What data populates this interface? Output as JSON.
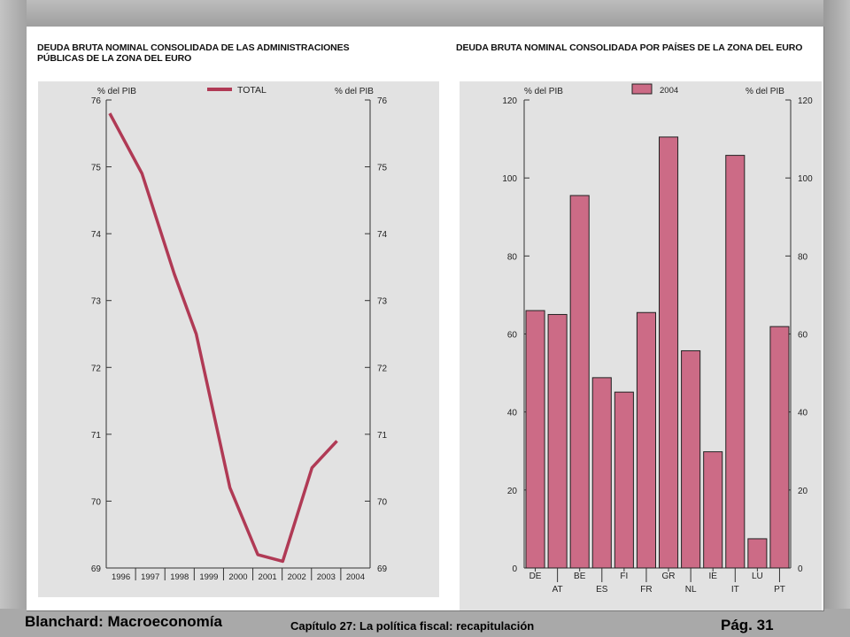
{
  "slide": {
    "left_panel_title": [
      "DEUDA BRUTA NOMINAL CONSOLIDADA DE LAS ADMINISTRACIONES",
      "PÚBLICAS DE LA ZONA  DEL EURO"
    ],
    "right_panel_title": "DEUDA BRUTA NOMINAL CONSOLIDADA POR PAÍSES DE LA ZONA DEL EURO",
    "footer_left": "Blanchard: Macroeconomía",
    "footer_center": "Capítulo 27: La política fiscal: recapitulación",
    "footer_right": "Pág.  31"
  },
  "chart_data": [
    {
      "type": "line",
      "title": "DEUDA BRUTA NOMINAL CONSOLIDADA DE LAS ADMINISTRACIONES PÚBLICAS DE LA ZONA  DEL EURO",
      "ylabel_left": "% del PIB",
      "ylabel_right": "% del PIB",
      "ylim": [
        69,
        76
      ],
      "yticks": [
        69,
        70,
        71,
        72,
        73,
        74,
        75,
        76
      ],
      "categories": [
        "1996",
        "1997",
        "1998",
        "1999",
        "2000",
        "2001",
        "2002",
        "2003",
        "2004"
      ],
      "series": [
        {
          "name": "TOTAL",
          "color": "#b03a55",
          "x": [
            1995.8,
            1996.9,
            1998.0,
            1998.75,
            1999.9,
            2000.85,
            2001.7,
            2002.7,
            2003.55
          ],
          "values": [
            75.8,
            74.9,
            73.4,
            72.5,
            70.2,
            69.2,
            69.1,
            70.5,
            70.9
          ]
        }
      ],
      "grid": false,
      "legend": "top-center"
    },
    {
      "type": "bar",
      "title": "DEUDA BRUTA NOMINAL CONSOLIDADA POR PAÍSES DE LA ZONA DEL EURO",
      "ylabel_left": "% del PIB",
      "ylabel_right": "% del PIB",
      "ylim": [
        0,
        120
      ],
      "yticks": [
        0,
        20,
        40,
        60,
        80,
        100,
        120
      ],
      "categories": [
        "DE",
        "AT",
        "BE",
        "ES",
        "FI",
        "FR",
        "GR",
        "NL",
        "IE",
        "IT",
        "LU",
        "PT"
      ],
      "series": [
        {
          "name": "2004",
          "color": "#cc6b86",
          "values": [
            66,
            65,
            95.5,
            48.8,
            45.1,
            65.5,
            110.5,
            55.7,
            29.8,
            105.8,
            7.5,
            61.9
          ]
        }
      ],
      "grid": false,
      "legend": "top-center"
    }
  ]
}
